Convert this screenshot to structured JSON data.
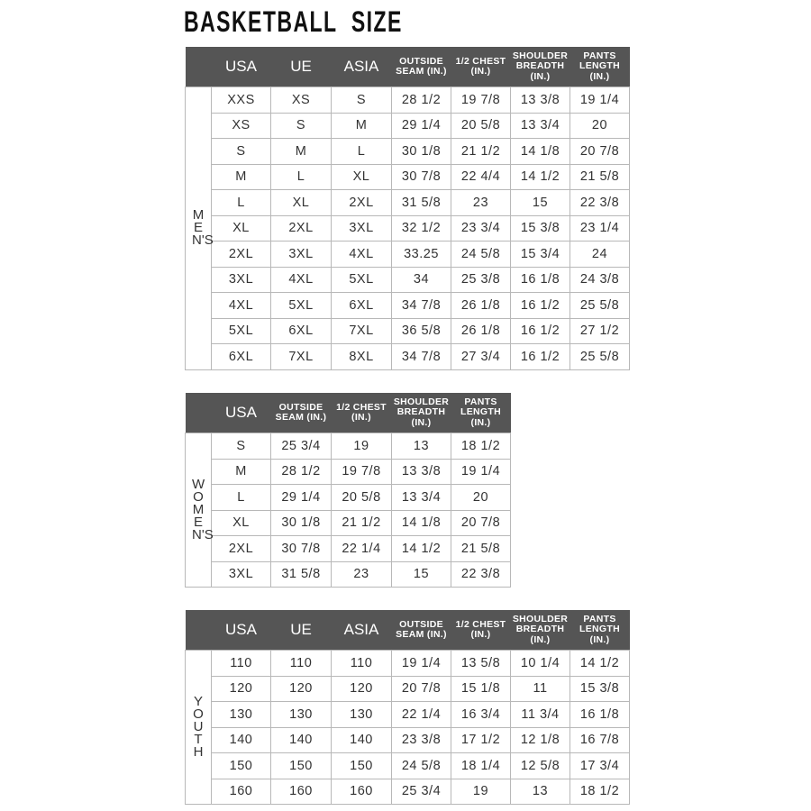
{
  "title": "BASKETBALL  SIZE",
  "colors": {
    "header_bg": "#555555",
    "header_text": "#ffffff",
    "border": "#b8b8b8"
  },
  "tables": [
    {
      "id": "mens",
      "side_label": "MEN'S",
      "headers": [
        "USA",
        "UE",
        "ASIA",
        "OUTSIDE SEAM (IN.)",
        "1/2 CHEST (IN.)",
        "SHOULDER BREADTH (IN.)",
        "PANTS LENGTH (IN.)"
      ],
      "rows": [
        [
          "XXS",
          "XS",
          "S",
          "28 1/2",
          "19 7/8",
          "13 3/8",
          "19 1/4"
        ],
        [
          "XS",
          "S",
          "M",
          "29 1/4",
          "20 5/8",
          "13 3/4",
          "20"
        ],
        [
          "S",
          "M",
          "L",
          "30 1/8",
          "21 1/2",
          "14 1/8",
          "20 7/8"
        ],
        [
          "M",
          "L",
          "XL",
          "30 7/8",
          "22 4/4",
          "14 1/2",
          "21 5/8"
        ],
        [
          "L",
          "XL",
          "2XL",
          "31 5/8",
          "23",
          "15",
          "22 3/8"
        ],
        [
          "XL",
          "2XL",
          "3XL",
          "32 1/2",
          "23 3/4",
          "15 3/8",
          "23 1/4"
        ],
        [
          "2XL",
          "3XL",
          "4XL",
          "33.25",
          "24 5/8",
          "15 3/4",
          "24"
        ],
        [
          "3XL",
          "4XL",
          "5XL",
          "34",
          "25 3/8",
          "16 1/8",
          "24 3/8"
        ],
        [
          "4XL",
          "5XL",
          "6XL",
          "34 7/8",
          "26 1/8",
          "16 1/2",
          "25 5/8"
        ],
        [
          "5XL",
          "6XL",
          "7XL",
          "36 5/8",
          "26 1/8",
          "16 1/2",
          "27 1/2"
        ],
        [
          "6XL",
          "7XL",
          "8XL",
          "34 7/8",
          "27 3/4",
          "16 1/2",
          "25 5/8"
        ]
      ]
    },
    {
      "id": "womens",
      "side_label": "WOMEN'S",
      "headers": [
        "USA",
        "OUTSIDE SEAM (IN.)",
        "1/2 CHEST (IN.)",
        "SHOULDER BREADTH (IN.)",
        "PANTS LENGTH (IN.)"
      ],
      "rows": [
        [
          "S",
          "25 3/4",
          "19",
          "13",
          "18 1/2"
        ],
        [
          "M",
          "28 1/2",
          "19 7/8",
          "13 3/8",
          "19 1/4"
        ],
        [
          "L",
          "29 1/4",
          "20 5/8",
          "13 3/4",
          "20"
        ],
        [
          "XL",
          "30 1/8",
          "21 1/2",
          "14 1/8",
          "20 7/8"
        ],
        [
          "2XL",
          "30 7/8",
          "22 1/4",
          "14 1/2",
          "21 5/8"
        ],
        [
          "3XL",
          "31 5/8",
          "23",
          "15",
          "22 3/8"
        ]
      ]
    },
    {
      "id": "youth",
      "side_label": "YOUTH",
      "headers": [
        "USA",
        "UE",
        "ASIA",
        "OUTSIDE SEAM (IN.)",
        "1/2 CHEST (IN.)",
        "SHOULDER BREADTH (IN.)",
        "PANTS LENGTH (IN.)"
      ],
      "rows": [
        [
          "110",
          "110",
          "110",
          "19 1/4",
          "13 5/8",
          "10 1/4",
          "14 1/2"
        ],
        [
          "120",
          "120",
          "120",
          "20 7/8",
          "15 1/8",
          "11",
          "15 3/8"
        ],
        [
          "130",
          "130",
          "130",
          "22 1/4",
          "16 3/4",
          "11 3/4",
          "16 1/8"
        ],
        [
          "140",
          "140",
          "140",
          "23 3/8",
          "17 1/2",
          "12 1/8",
          "16 7/8"
        ],
        [
          "150",
          "150",
          "150",
          "24 5/8",
          "18 1/4",
          "12 5/8",
          "17 3/4"
        ],
        [
          "160",
          "160",
          "160",
          "25 3/4",
          "19",
          "13",
          "18 1/2"
        ]
      ]
    }
  ]
}
